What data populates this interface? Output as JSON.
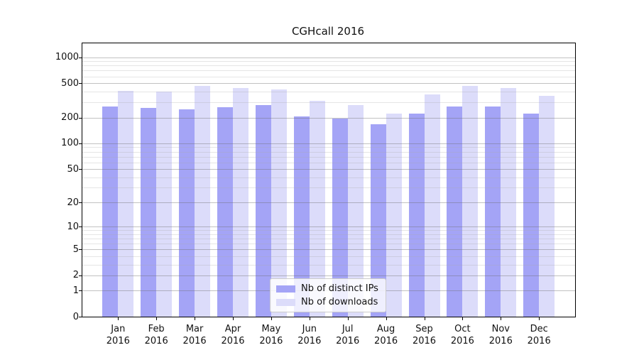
{
  "chart_data": {
    "type": "bar",
    "title": "CGHcall 2016",
    "xlabel": "",
    "ylabel": "",
    "x_year": "2016",
    "categories": [
      "Jan",
      "Feb",
      "Mar",
      "Apr",
      "May",
      "Jun",
      "Jul",
      "Aug",
      "Sep",
      "Oct",
      "Nov",
      "Dec"
    ],
    "series": [
      {
        "name": "Nb of distinct IPs",
        "color": "#a4a4f6",
        "values": [
          270,
          261,
          250,
          265,
          281,
          207,
          196,
          168,
          224,
          271,
          269,
          223
        ]
      },
      {
        "name": "Nb of downloads",
        "color": "#dcdcfa",
        "values": [
          410,
          403,
          469,
          442,
          426,
          315,
          281,
          224,
          373,
          468,
          441,
          359
        ]
      }
    ],
    "y_scale": "log10(1+x)",
    "y_ticks": [
      0,
      1,
      2,
      5,
      10,
      20,
      50,
      100,
      200,
      500,
      1000
    ],
    "y_minor_ticks": [
      3,
      4,
      6,
      7,
      8,
      9,
      30,
      40,
      60,
      70,
      80,
      90,
      300,
      400,
      600,
      700,
      800,
      900
    ],
    "ylim": [
      0,
      1400
    ],
    "grid": "on",
    "legend_position": "bottom-center",
    "colors": {
      "major_grid": "rgba(110,110,110,0.42)",
      "minor_grid": "rgba(170,170,170,0.30)",
      "spine": "#000000",
      "background": "#ffffff"
    }
  }
}
